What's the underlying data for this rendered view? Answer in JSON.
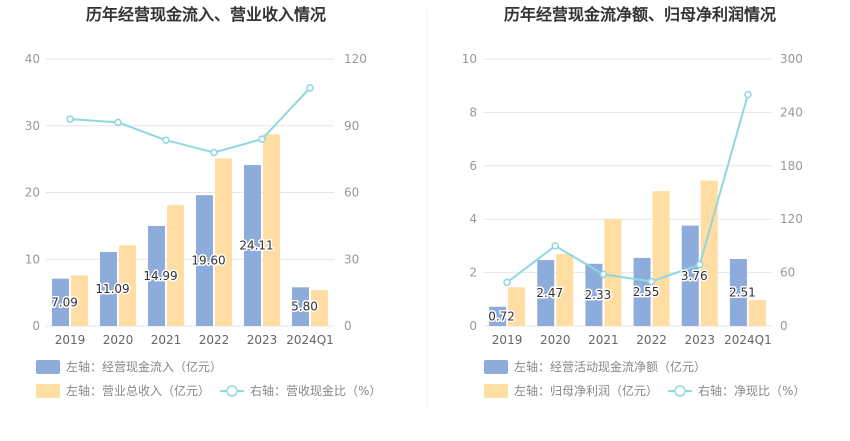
{
  "colors": {
    "bar_left": "#8eacdb",
    "bar_right": "#ffdda3",
    "line": "#8fd8e0"
  },
  "chart_data": [
    {
      "type": "bar",
      "title": "历年经营现金流入、营业收入情况",
      "categories": [
        "2019",
        "2020",
        "2021",
        "2022",
        "2023",
        "2024Q1"
      ],
      "left_axis": {
        "ticks": [
          0,
          10,
          20,
          30,
          40
        ],
        "ylim": [
          0,
          40
        ]
      },
      "right_axis": {
        "ticks": [
          0,
          30,
          60,
          90,
          120
        ],
        "ylim": [
          0,
          120
        ]
      },
      "series": [
        {
          "name": "左轴：经营现金流入（亿元）",
          "axis": "left",
          "kind": "bar",
          "values": [
            7.09,
            11.09,
            14.99,
            19.6,
            24.11,
            5.8
          ],
          "labels": [
            "7.09",
            "11.09",
            "14.99",
            "19.60",
            "24.11",
            "5.80"
          ]
        },
        {
          "name": "左轴：营业总收入（亿元）",
          "axis": "left",
          "kind": "bar",
          "values": [
            7.6,
            12.1,
            18.1,
            25.1,
            28.7,
            5.4
          ]
        },
        {
          "name": "右轴：营收现金比（%）",
          "axis": "right",
          "kind": "line",
          "values": [
            93,
            91.5,
            83.5,
            78,
            84,
            107
          ]
        }
      ],
      "legend": "bottom-left"
    },
    {
      "type": "bar",
      "title": "历年经营现金流净额、归母净利润情况",
      "categories": [
        "2019",
        "2020",
        "2021",
        "2022",
        "2023",
        "2024Q1"
      ],
      "left_axis": {
        "ticks": [
          0,
          2,
          4,
          6,
          8,
          10
        ],
        "ylim": [
          0,
          10
        ]
      },
      "right_axis": {
        "ticks": [
          0,
          60,
          120,
          180,
          240,
          300
        ],
        "ylim": [
          0,
          300
        ]
      },
      "series": [
        {
          "name": "左轴：经营活动现金流净额（亿元）",
          "axis": "left",
          "kind": "bar",
          "values": [
            0.72,
            2.47,
            2.33,
            2.55,
            3.76,
            2.51
          ],
          "labels": [
            "0.72",
            "2.47",
            "2.33",
            "2.55",
            "3.76",
            "2.51"
          ]
        },
        {
          "name": "左轴：归母净利润（亿元）",
          "axis": "left",
          "kind": "bar",
          "values": [
            1.45,
            2.7,
            4.0,
            5.05,
            5.45,
            0.97
          ]
        },
        {
          "name": "右轴：净现比（%）",
          "axis": "right",
          "kind": "line",
          "values": [
            49,
            90,
            58,
            50,
            69,
            260
          ]
        }
      ],
      "legend": "bottom-left"
    }
  ]
}
